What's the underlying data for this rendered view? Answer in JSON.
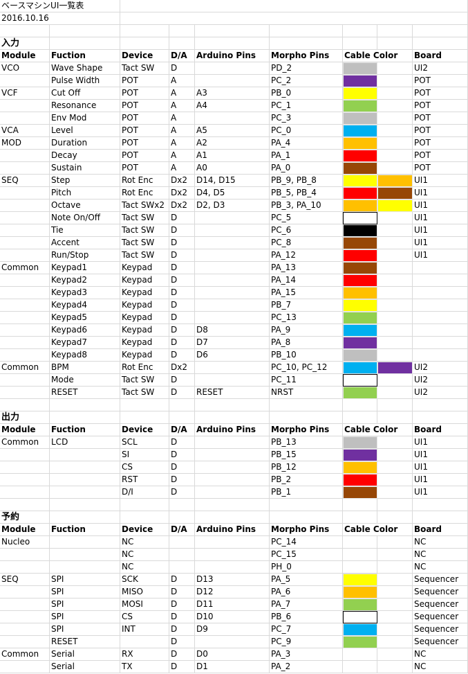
{
  "title": "ベースマシンUI一覧表",
  "date": "2016.10.16",
  "headers": {
    "module": "Module",
    "function": "Fuction",
    "device": "Device",
    "da": "D/A",
    "arduino": "Arduino Pins",
    "morpho": "Morpho Pins",
    "cable": "Cable Color",
    "board": "Board"
  },
  "colors": {
    "gray": "#bfbfbf",
    "purple": "#7030a0",
    "yellow": "#ffff00",
    "green": "#92d050",
    "blue": "#00b0f0",
    "orange": "#ffc000",
    "red": "#ff0000",
    "brown": "#974706",
    "black": "#000000",
    "white": "#ffffff"
  },
  "sections": [
    {
      "title": "入力",
      "rows": [
        {
          "module": "VCO",
          "function": "Wave Shape",
          "device": "Tact SW",
          "da": "D",
          "arduino": "",
          "morpho": "PD_2",
          "cable": [
            "gray"
          ],
          "board": "UI2"
        },
        {
          "module": "",
          "function": "Pulse Width",
          "device": "POT",
          "da": "A",
          "arduino": "",
          "morpho": "PC_2",
          "cable": [
            "purple"
          ],
          "board": "POT"
        },
        {
          "module": "VCF",
          "function": "Cut Off",
          "device": "POT",
          "da": "A",
          "arduino": "A3",
          "morpho": "PB_0",
          "cable": [
            "yellow"
          ],
          "board": "POT"
        },
        {
          "module": "",
          "function": "Resonance",
          "device": "POT",
          "da": "A",
          "arduino": "A4",
          "morpho": "PC_1",
          "cable": [
            "green"
          ],
          "board": "POT"
        },
        {
          "module": "",
          "function": "Env Mod",
          "device": "POT",
          "da": "A",
          "arduino": "",
          "morpho": "PC_3",
          "cable": [
            "gray"
          ],
          "board": "POT"
        },
        {
          "module": "VCA",
          "function": "Level",
          "device": "POT",
          "da": "A",
          "arduino": "A5",
          "morpho": "PC_0",
          "cable": [
            "blue"
          ],
          "board": "POT"
        },
        {
          "module": "MOD",
          "function": "Duration",
          "device": "POT",
          "da": "A",
          "arduino": "A2",
          "morpho": "PA_4",
          "cable": [
            "orange"
          ],
          "board": "POT"
        },
        {
          "module": "",
          "function": "Decay",
          "device": "POT",
          "da": "A",
          "arduino": "A1",
          "morpho": "PA_1",
          "cable": [
            "red"
          ],
          "board": "POT"
        },
        {
          "module": "",
          "function": "Sustain",
          "device": "POT",
          "da": "A",
          "arduino": "A0",
          "morpho": "PA_0",
          "cable": [
            "brown"
          ],
          "board": "POT"
        },
        {
          "module": "SEQ",
          "function": "Step",
          "device": "Rot Enc",
          "da": "Dx2",
          "arduino": "D14, D15",
          "morpho": "PB_9, PB_8",
          "cable": [
            "yellow",
            "orange"
          ],
          "board": "UI1"
        },
        {
          "module": "",
          "function": "Pitch",
          "device": "Rot Enc",
          "da": "Dx2",
          "arduino": "D4, D5",
          "morpho": "PB_5, PB_4",
          "cable": [
            "red",
            "brown"
          ],
          "board": "UI1"
        },
        {
          "module": "",
          "function": "Octave",
          "device": "Tact SWx2",
          "da": "Dx2",
          "arduino": "D2, D3",
          "morpho": "PB_3, PA_10",
          "cable": [
            "orange",
            "yellow"
          ],
          "board": "UI1"
        },
        {
          "module": "",
          "function": "Note On/Off",
          "device": "Tact SW",
          "da": "D",
          "arduino": "",
          "morpho": "PC_5",
          "cable": [
            "white"
          ],
          "board": "UI1"
        },
        {
          "module": "",
          "function": "Tie",
          "device": "Tact SW",
          "da": "D",
          "arduino": "",
          "morpho": "PC_6",
          "cable": [
            "black"
          ],
          "board": "UI1"
        },
        {
          "module": "",
          "function": "Accent",
          "device": "Tact SW",
          "da": "D",
          "arduino": "",
          "morpho": "PC_8",
          "cable": [
            "brown"
          ],
          "board": "UI1"
        },
        {
          "module": "",
          "function": "Run/Stop",
          "device": "Tact SW",
          "da": "D",
          "arduino": "",
          "morpho": "PA_12",
          "cable": [
            "red"
          ],
          "board": "UI1"
        },
        {
          "module": "Common",
          "function": "Keypad1",
          "device": "Keypad",
          "da": "D",
          "arduino": "",
          "morpho": "PA_13",
          "cable": [
            "brown"
          ],
          "board": ""
        },
        {
          "module": "",
          "function": "Keypad2",
          "device": "Keypad",
          "da": "D",
          "arduino": "",
          "morpho": "PA_14",
          "cable": [
            "red"
          ],
          "board": ""
        },
        {
          "module": "",
          "function": "Keypad3",
          "device": "Keypad",
          "da": "D",
          "arduino": "",
          "morpho": "PA_15",
          "cable": [
            "orange"
          ],
          "board": ""
        },
        {
          "module": "",
          "function": "Keypad4",
          "device": "Keypad",
          "da": "D",
          "arduino": "",
          "morpho": "PB_7",
          "cable": [
            "yellow"
          ],
          "board": ""
        },
        {
          "module": "",
          "function": "Keypad5",
          "device": "Keypad",
          "da": "D",
          "arduino": "",
          "morpho": "PC_13",
          "cable": [
            "green"
          ],
          "board": ""
        },
        {
          "module": "",
          "function": "Keypad6",
          "device": "Keypad",
          "da": "D",
          "arduino": "D8",
          "morpho": "PA_9",
          "cable": [
            "blue"
          ],
          "board": ""
        },
        {
          "module": "",
          "function": "Keypad7",
          "device": "Keypad",
          "da": "D",
          "arduino": "D7",
          "morpho": "PA_8",
          "cable": [
            "purple"
          ],
          "board": ""
        },
        {
          "module": "",
          "function": "Keypad8",
          "device": "Keypad",
          "da": "D",
          "arduino": "D6",
          "morpho": "PB_10",
          "cable": [
            "gray"
          ],
          "board": ""
        },
        {
          "module": "Common",
          "function": "BPM",
          "device": "Rot Enc",
          "da": "Dx2",
          "arduino": "",
          "morpho": "PC_10, PC_12",
          "cable": [
            "blue",
            "purple"
          ],
          "board": "UI2"
        },
        {
          "module": "",
          "function": "Mode",
          "device": "Tact SW",
          "da": "D",
          "arduino": "",
          "morpho": "PC_11",
          "cable": [
            "white"
          ],
          "board": "UI2"
        },
        {
          "module": "",
          "function": "RESET",
          "device": "Tact SW",
          "da": "D",
          "arduino": "RESET",
          "morpho": "NRST",
          "cable": [
            "green"
          ],
          "board": "UI2"
        }
      ]
    },
    {
      "title": "出力",
      "rows": [
        {
          "module": "Common",
          "function": "LCD",
          "device": "SCL",
          "da": "D",
          "arduino": "",
          "morpho": "PB_13",
          "cable": [
            "gray"
          ],
          "board": "UI1"
        },
        {
          "module": "",
          "function": "",
          "device": "SI",
          "da": "D",
          "arduino": "",
          "morpho": "PB_15",
          "cable": [
            "purple"
          ],
          "board": "UI1"
        },
        {
          "module": "",
          "function": "",
          "device": "CS",
          "da": "D",
          "arduino": "",
          "morpho": "PB_12",
          "cable": [
            "orange"
          ],
          "board": "UI1"
        },
        {
          "module": "",
          "function": "",
          "device": "RST",
          "da": "D",
          "arduino": "",
          "morpho": "PB_2",
          "cable": [
            "red"
          ],
          "board": "UI1"
        },
        {
          "module": "",
          "function": "",
          "device": "D/I",
          "da": "D",
          "arduino": "",
          "morpho": "PB_1",
          "cable": [
            "brown"
          ],
          "board": "UI1"
        }
      ]
    },
    {
      "title": "予約",
      "rows": [
        {
          "module": "Nucleo",
          "function": "",
          "device": "NC",
          "da": "",
          "arduino": "",
          "morpho": "PC_14",
          "cable": [],
          "board": "NC"
        },
        {
          "module": "",
          "function": "",
          "device": "NC",
          "da": "",
          "arduino": "",
          "morpho": "PC_15",
          "cable": [],
          "board": "NC"
        },
        {
          "module": "",
          "function": "",
          "device": "NC",
          "da": "",
          "arduino": "",
          "morpho": "PH_0",
          "cable": [],
          "board": "NC"
        },
        {
          "module": "SEQ",
          "function": "SPI",
          "device": "SCK",
          "da": "D",
          "arduino": "D13",
          "morpho": "PA_5",
          "cable": [
            "yellow"
          ],
          "board": "Sequencer"
        },
        {
          "module": "",
          "function": "SPI",
          "device": "MISO",
          "da": "D",
          "arduino": "D12",
          "morpho": "PA_6",
          "cable": [
            "orange"
          ],
          "board": "Sequencer"
        },
        {
          "module": "",
          "function": "SPI",
          "device": "MOSI",
          "da": "D",
          "arduino": "D11",
          "morpho": "PA_7",
          "cable": [
            "green"
          ],
          "board": "Sequencer"
        },
        {
          "module": "",
          "function": "SPI",
          "device": "CS",
          "da": "D",
          "arduino": "D10",
          "morpho": "PB_6",
          "cable": [
            "white"
          ],
          "board": "Sequencer"
        },
        {
          "module": "",
          "function": "SPI",
          "device": "INT",
          "da": "D",
          "arduino": "D9",
          "morpho": "PC_7",
          "cable": [
            "blue"
          ],
          "board": "Sequencer"
        },
        {
          "module": "",
          "function": "RESET",
          "device": "",
          "da": "D",
          "arduino": "",
          "morpho": "PC_9",
          "cable": [
            "green"
          ],
          "board": "Sequencer"
        },
        {
          "module": "Common",
          "function": "Serial",
          "device": "RX",
          "da": "D",
          "arduino": "D0",
          "morpho": "PA_3",
          "cable": [],
          "board": "NC"
        },
        {
          "module": "",
          "function": "Serial",
          "device": "TX",
          "da": "D",
          "arduino": "D1",
          "morpho": "PA_2",
          "cable": [],
          "board": "NC"
        }
      ]
    }
  ]
}
